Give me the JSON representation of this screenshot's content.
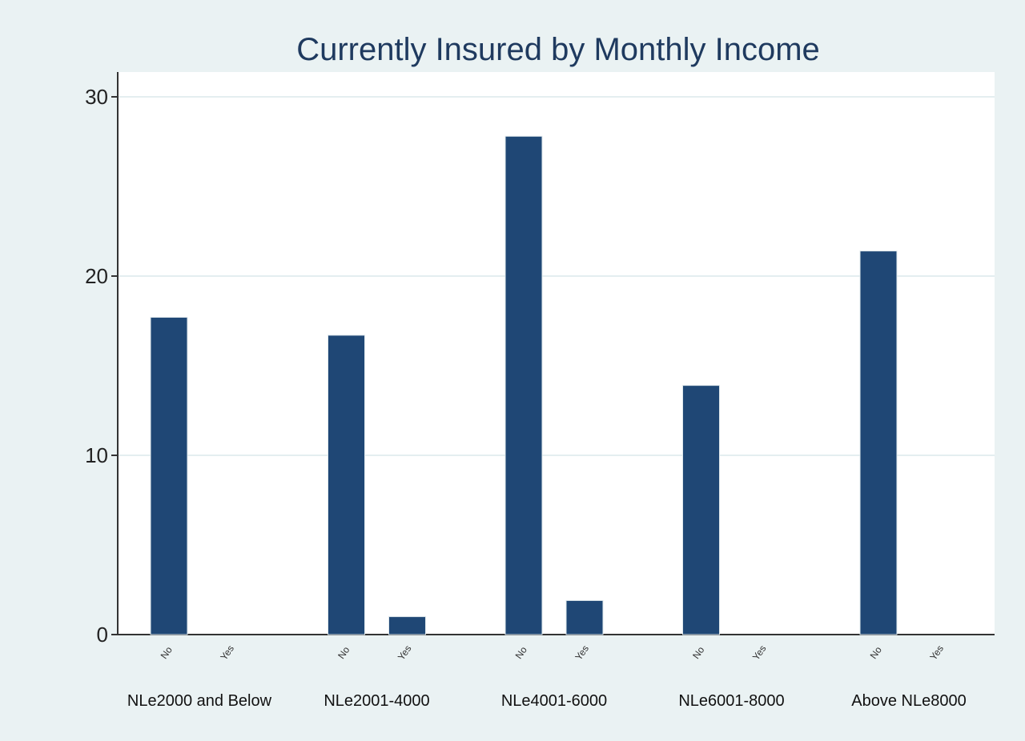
{
  "chart_data": {
    "type": "bar",
    "title": "Currently Insured by Monthly Income",
    "xlabel": "",
    "ylabel": "",
    "ylim": [
      0,
      30
    ],
    "yticks": [
      0,
      10,
      20,
      30
    ],
    "grid": true,
    "legend": "none",
    "bar_color": "#1f4775",
    "groups": [
      {
        "label": "NLe2000 and Below",
        "bars": [
          {
            "label": "No",
            "value": 17.7
          },
          {
            "label": "Yes",
            "value": 0
          }
        ]
      },
      {
        "label": "NLe2001-4000",
        "bars": [
          {
            "label": "No",
            "value": 16.7
          },
          {
            "label": "Yes",
            "value": 1.0
          }
        ]
      },
      {
        "label": "NLe4001-6000",
        "bars": [
          {
            "label": "No",
            "value": 27.8
          },
          {
            "label": "Yes",
            "value": 1.9
          }
        ]
      },
      {
        "label": "NLe6001-8000",
        "bars": [
          {
            "label": "No",
            "value": 13.9
          },
          {
            "label": "Yes",
            "value": 0
          }
        ]
      },
      {
        "label": "Above NLe8000",
        "bars": [
          {
            "label": "No",
            "value": 21.4
          },
          {
            "label": "Yes",
            "value": 0
          }
        ]
      }
    ]
  }
}
